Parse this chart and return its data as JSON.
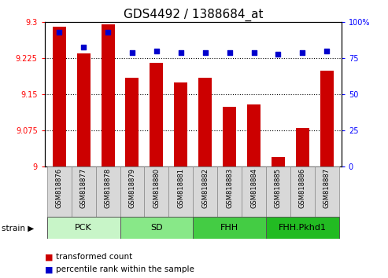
{
  "title": "GDS4492 / 1388684_at",
  "samples": [
    "GSM818876",
    "GSM818877",
    "GSM818878",
    "GSM818879",
    "GSM818880",
    "GSM818881",
    "GSM818882",
    "GSM818883",
    "GSM818884",
    "GSM818885",
    "GSM818886",
    "GSM818887"
  ],
  "transformed_count": [
    9.29,
    9.235,
    9.295,
    9.185,
    9.215,
    9.175,
    9.185,
    9.125,
    9.13,
    9.02,
    9.08,
    9.2
  ],
  "percentile_rank": [
    93,
    83,
    93,
    79,
    80,
    79,
    79,
    79,
    79,
    78,
    79,
    80
  ],
  "groups": [
    {
      "label": "PCK",
      "start": 0,
      "end": 3,
      "color": "#c8f5c8"
    },
    {
      "label": "SD",
      "start": 3,
      "end": 6,
      "color": "#88e888"
    },
    {
      "label": "FHH",
      "start": 6,
      "end": 9,
      "color": "#44cc44"
    },
    {
      "label": "FHH.Pkhd1",
      "start": 9,
      "end": 12,
      "color": "#22bb22"
    }
  ],
  "ylim_left": [
    9.0,
    9.3
  ],
  "ylim_right": [
    0,
    100
  ],
  "yticks_left": [
    9.0,
    9.075,
    9.15,
    9.225,
    9.3
  ],
  "yticks_right": [
    0,
    25,
    50,
    75,
    100
  ],
  "ytick_labels_left": [
    "9",
    "9.075",
    "9.15",
    "9.225",
    "9.3"
  ],
  "ytick_labels_right": [
    "0",
    "25",
    "50",
    "75",
    "100%"
  ],
  "bar_color": "#cc0000",
  "dot_color": "#0000cc",
  "bar_width": 0.55,
  "tick_label_area_color": "#d8d8d8",
  "title_font_size": 11,
  "strain_label": "strain",
  "legend_items": [
    "transformed count",
    "percentile rank within the sample"
  ]
}
